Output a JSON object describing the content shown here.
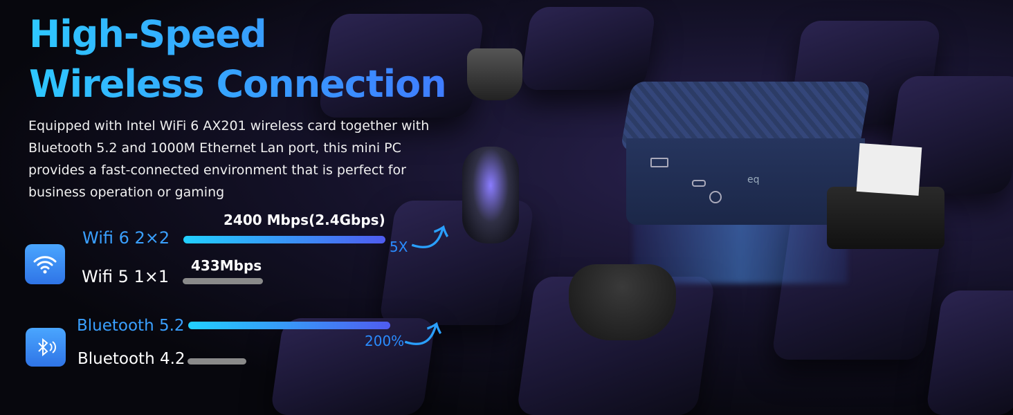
{
  "headline": {
    "line1": "High-Speed",
    "line2": "Wireless Connection"
  },
  "description": "Equipped with Intel WiFi 6 AX201 wireless card together with Bluetooth 5.2 and 1000M Ethernet Lan port, this mini PC provides a fast-connected environment that is perfect for business operation or gaming",
  "wifi": {
    "icon": "wifi-icon",
    "new": {
      "label": "Wifi 6 2×2",
      "speed": "2400 Mbps(2.4Gbps)"
    },
    "old": {
      "label": "Wifi 5 1×1",
      "speed": "433Mbps"
    },
    "improvement": "5X"
  },
  "bluetooth": {
    "icon": "bluetooth-icon",
    "new": {
      "label": "Bluetooth 5.2"
    },
    "old": {
      "label": "Bluetooth 4.2"
    },
    "improvement": "200%"
  },
  "device_logo": "eq",
  "colors": {
    "accent_cyan": "#22d0ff",
    "accent_blue": "#4f5cf0",
    "background": "#0c0b18"
  }
}
